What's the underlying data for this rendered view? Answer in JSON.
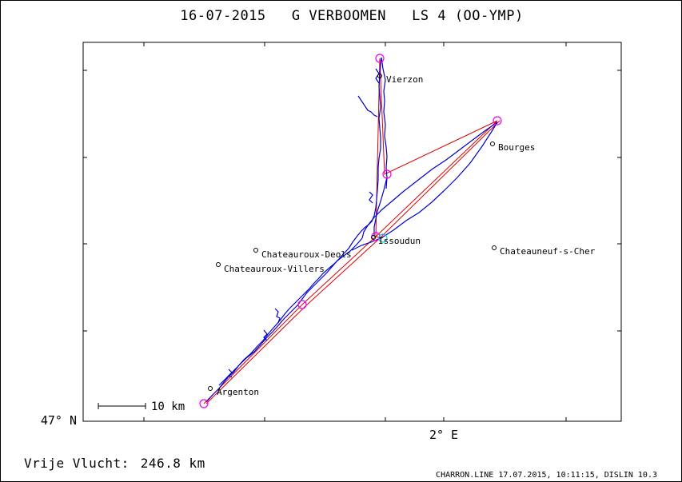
{
  "header": {
    "title": "16-07-2015   G VERBOOMEN   LS 4 (OO-YMP)"
  },
  "axes": {
    "lat_label": "47° N",
    "lon_label": "2° E"
  },
  "scale_bar": {
    "label": "10 km"
  },
  "footer": {
    "distance_label": "Vrije Vlucht:",
    "distance_value": "246.8 km",
    "credit": "CHARRON.LINE 17.07.2015, 10:11:15, DISLIN 10.3"
  },
  "places": [
    {
      "id": "vierzon",
      "name": "Vierzon"
    },
    {
      "id": "bourges",
      "name": "Bourges"
    },
    {
      "id": "issoudun",
      "name": "Issoudun"
    },
    {
      "id": "chateauroux-deols",
      "name": "Chateauroux-Deols"
    },
    {
      "id": "chateauroux-villers",
      "name": "Chateauroux-Villers"
    },
    {
      "id": "chateauneuf",
      "name": "Chateauneuf-s-Cher"
    },
    {
      "id": "argenton",
      "name": "Argenton"
    }
  ],
  "colors": {
    "frame": "#000000",
    "track": "#0000cc",
    "task_line": "#dd0000",
    "turnpoint": "#ee00ee",
    "start_marker": "#00cccc"
  }
}
